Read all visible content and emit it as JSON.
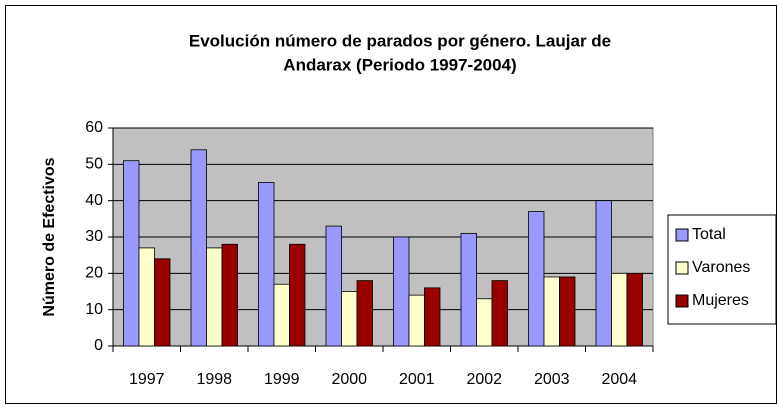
{
  "chart_data": {
    "type": "bar",
    "title": [
      "Evolución número de parados por género. Laujar de",
      "Andarax (Periodo 1997-2004)"
    ],
    "y_label": "Número de Efectivos",
    "categories": [
      "1997",
      "1998",
      "1999",
      "2000",
      "2001",
      "2002",
      "2003",
      "2004"
    ],
    "series": [
      {
        "name": "Total",
        "color": "#9999ff",
        "values": [
          51,
          54,
          45,
          33,
          30,
          31,
          37,
          40
        ]
      },
      {
        "name": "Varones",
        "color": "#ffffcc",
        "values": [
          27,
          27,
          17,
          15,
          14,
          13,
          19,
          20
        ]
      },
      {
        "name": "Mujeres",
        "color": "#990000",
        "values": [
          24,
          28,
          28,
          18,
          16,
          18,
          19,
          20
        ]
      }
    ],
    "ylim": [
      0,
      60
    ],
    "yticks": [
      0,
      10,
      20,
      30,
      40,
      50,
      60
    ],
    "grid": true,
    "legend": "right"
  }
}
